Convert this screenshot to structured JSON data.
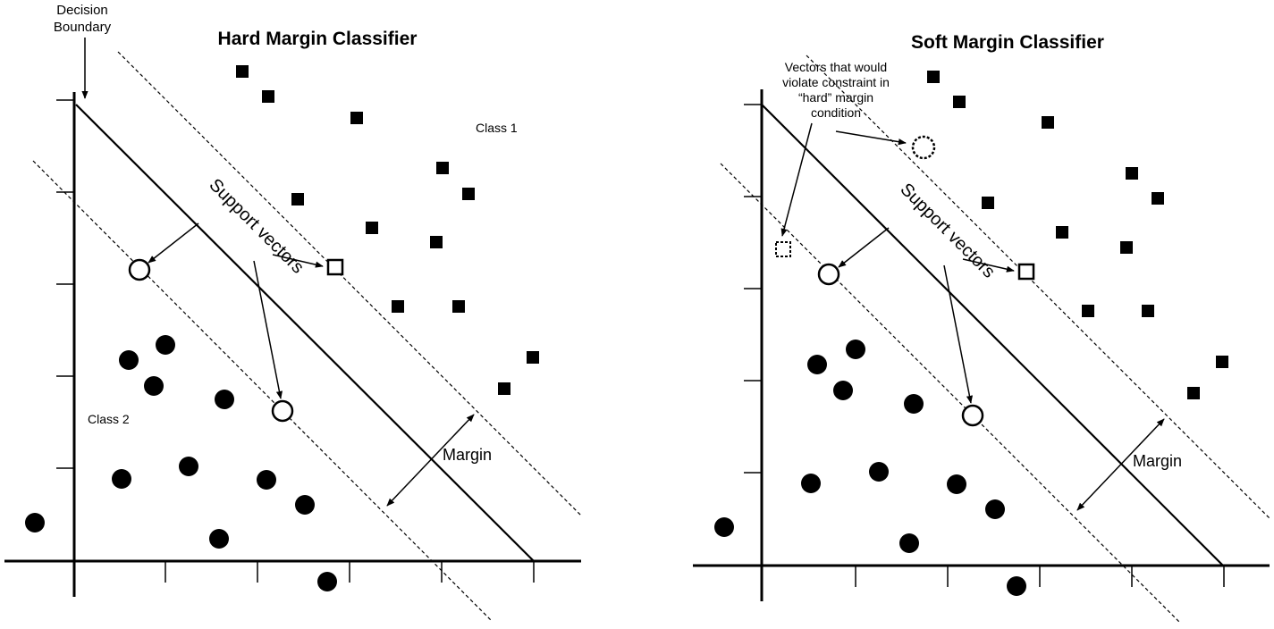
{
  "panels": [
    {
      "title": "Hard Margin Classifier",
      "class1_label": "Class 1",
      "class2_label": "Class 2",
      "support_vectors_label": "Support vectors",
      "margin_label": "Margin",
      "boundary_label_line1": "Decision",
      "boundary_label_line2": "Boundary"
    },
    {
      "title": "Soft Margin Classifier",
      "support_vectors_label": "Support vectors",
      "margin_label": "Margin",
      "violation_label_line1": "Vectors that would",
      "violation_label_line2": "violate constraint in",
      "violation_label_line3": "“hard” margin",
      "violation_label_line4": "condition"
    }
  ],
  "colors": {
    "ink": "#000000",
    "background": "#ffffff"
  }
}
